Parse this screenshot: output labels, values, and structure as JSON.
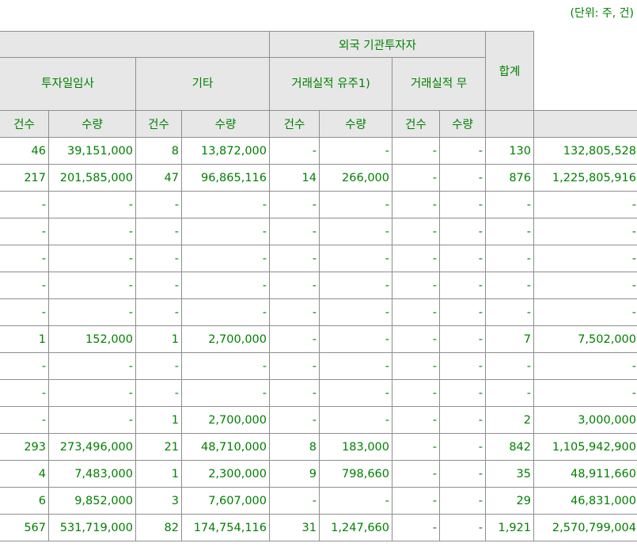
{
  "unit_note": "(단위: 주, 건)",
  "header": {
    "foreign_institution": "외국 기관투자자",
    "groups": [
      "투자일임사",
      "기타",
      "거래실적 유주1)",
      "거래실적 무"
    ],
    "total": "합계",
    "count": "건수",
    "qty": "수량"
  },
  "rows": [
    [
      "46",
      "39,151,000",
      "8",
      "13,872,000",
      "-",
      "-",
      "-",
      "-",
      "130",
      "132,805,528"
    ],
    [
      "217",
      "201,585,000",
      "47",
      "96,865,116",
      "14",
      "266,000",
      "-",
      "-",
      "876",
      "1,225,805,916"
    ],
    [
      "-",
      "-",
      "-",
      "-",
      "-",
      "-",
      "-",
      "-",
      "-",
      "-"
    ],
    [
      "-",
      "-",
      "-",
      "-",
      "-",
      "-",
      "-",
      "-",
      "-",
      "-"
    ],
    [
      "-",
      "-",
      "-",
      "-",
      "-",
      "-",
      "-",
      "-",
      "-",
      "-"
    ],
    [
      "-",
      "-",
      "-",
      "-",
      "-",
      "-",
      "-",
      "-",
      "-",
      "-"
    ],
    [
      "-",
      "-",
      "-",
      "-",
      "-",
      "-",
      "-",
      "-",
      "-",
      "-"
    ],
    [
      "1",
      "152,000",
      "1",
      "2,700,000",
      "-",
      "-",
      "-",
      "-",
      "7",
      "7,502,000"
    ],
    [
      "-",
      "-",
      "-",
      "-",
      "-",
      "-",
      "-",
      "-",
      "-",
      "-"
    ],
    [
      "-",
      "-",
      "-",
      "-",
      "-",
      "-",
      "-",
      "-",
      "-",
      "-"
    ],
    [
      "-",
      "-",
      "1",
      "2,700,000",
      "-",
      "-",
      "-",
      "-",
      "2",
      "3,000,000"
    ],
    [
      "293",
      "273,496,000",
      "21",
      "48,710,000",
      "8",
      "183,000",
      "-",
      "-",
      "842",
      "1,105,942,900"
    ],
    [
      "4",
      "7,483,000",
      "1",
      "2,300,000",
      "9",
      "798,660",
      "-",
      "-",
      "35",
      "48,911,660"
    ],
    [
      "6",
      "9,852,000",
      "3",
      "7,607,000",
      "-",
      "-",
      "-",
      "-",
      "29",
      "46,831,000"
    ],
    [
      "567",
      "531,719,000",
      "82",
      "174,754,116",
      "31",
      "1,247,660",
      "-",
      "-",
      "1,921",
      "2,570,799,004"
    ]
  ]
}
